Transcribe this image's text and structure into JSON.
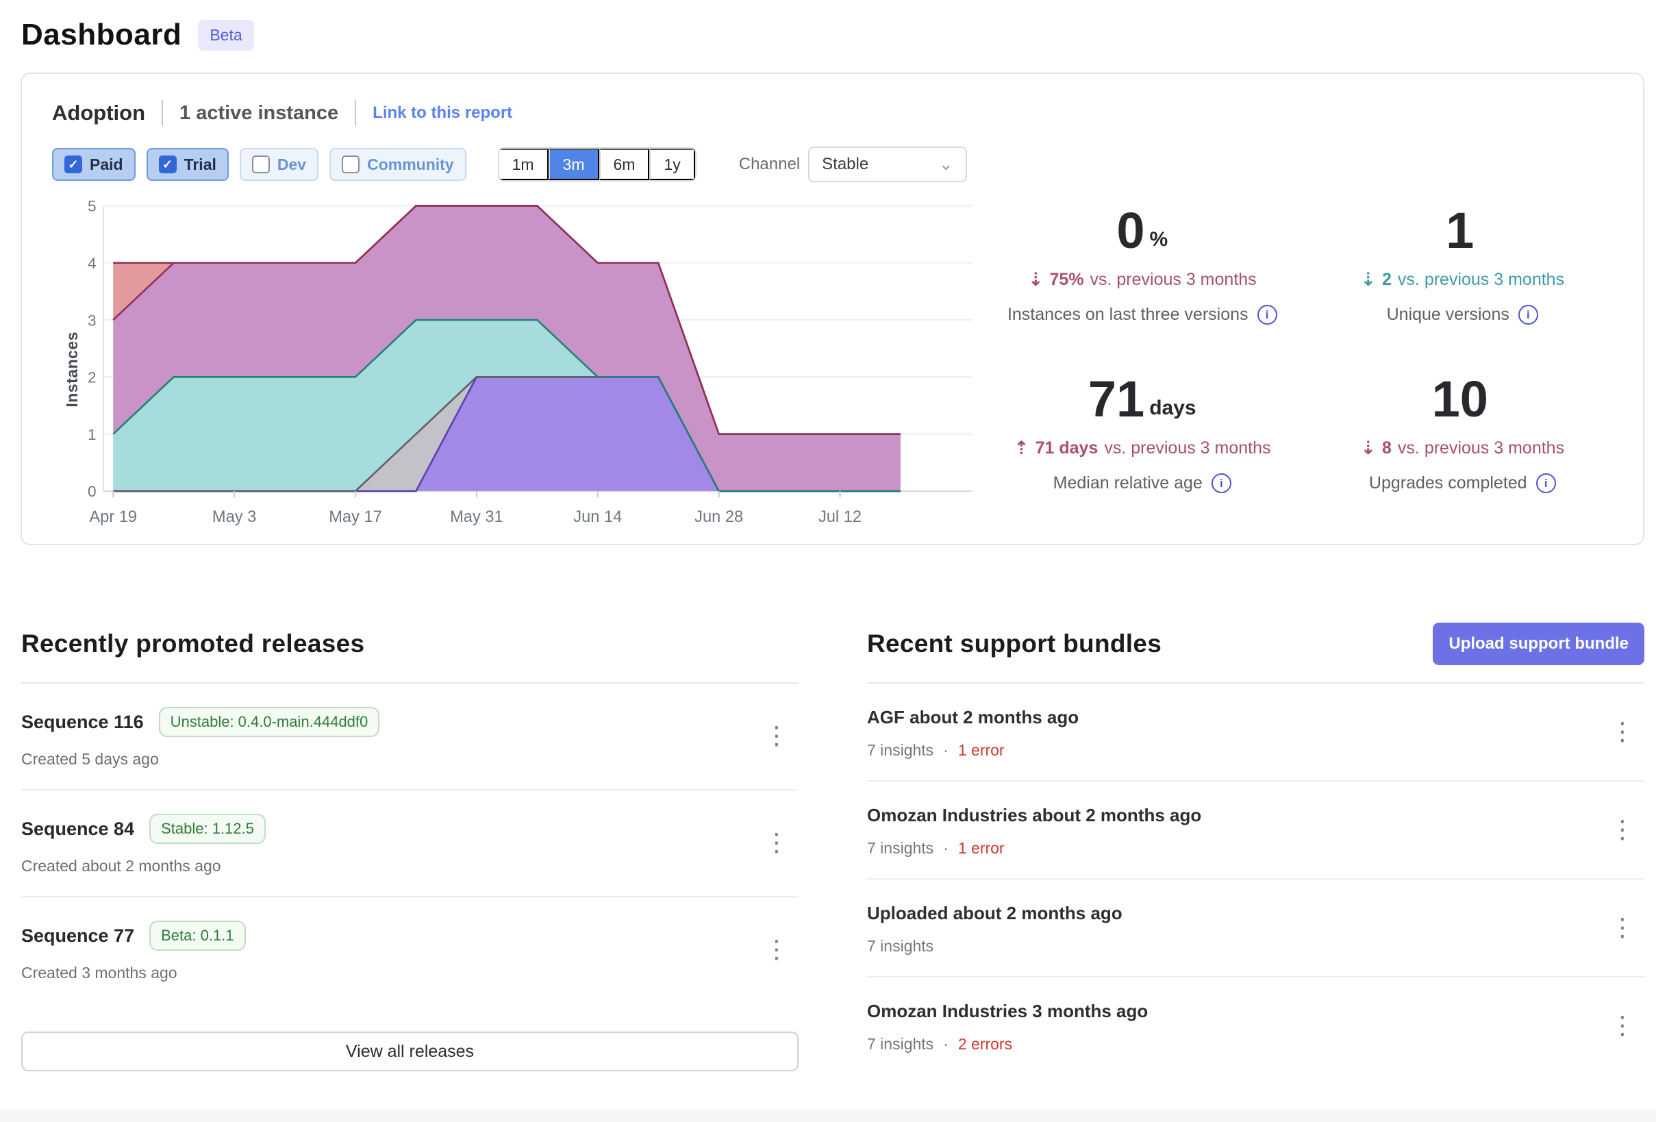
{
  "header": {
    "title": "Dashboard",
    "badge": "Beta"
  },
  "icons": {
    "info": "i",
    "kebab": "⋮",
    "check": "✓",
    "chevron_down": "⌄",
    "dot": "·"
  },
  "colors": {
    "accent_blue": "#5085e8",
    "link_blue": "#5b82ee",
    "indigo_button": "#6c72e6",
    "delta_red": "#a8506b",
    "delta_teal": "#3e9aa7",
    "error_red": "#cf3a2e",
    "badge_green": "#2f7d36",
    "beta_purple": "#5558dd"
  },
  "adoption": {
    "title": "Adoption",
    "active_instances": "1 active instance",
    "link_label": "Link to this report",
    "filters": [
      {
        "label": "Paid",
        "checked": true
      },
      {
        "label": "Trial",
        "checked": true
      },
      {
        "label": "Dev",
        "checked": false
      },
      {
        "label": "Community",
        "checked": false
      }
    ],
    "time_ranges": [
      "1m",
      "3m",
      "6m",
      "1y"
    ],
    "time_range_selected": "3m",
    "channel_label": "Channel",
    "channel_value": "Stable"
  },
  "chart_data": {
    "type": "area",
    "stacked": true,
    "title": "",
    "xlabel": "",
    "ylabel": "Instances",
    "ylim": [
      0,
      5
    ],
    "y_ticks": [
      0,
      1,
      2,
      3,
      4,
      5
    ],
    "grid": "horizontal",
    "legend": "none",
    "x_weeks": [
      "Apr 19",
      "Apr 26",
      "May 3",
      "May 10",
      "May 17",
      "May 24",
      "May 31",
      "Jun 7",
      "Jun 14",
      "Jun 21",
      "Jun 28",
      "Jul 5",
      "Jul 12",
      "Jul 19"
    ],
    "x_tick_labels": [
      "Apr 19",
      "May 3",
      "May 17",
      "May 31",
      "Jun 14",
      "Jun 28",
      "Jul 12"
    ],
    "x_tick_week_indexes": [
      0,
      2,
      4,
      6,
      8,
      10,
      12
    ],
    "series": [
      {
        "name": "version-purple",
        "fill": "#a289e7",
        "stroke": "#5a3fae",
        "values": [
          0,
          0,
          0,
          0,
          0,
          0,
          2,
          2,
          2,
          2,
          0,
          0,
          0,
          0
        ]
      },
      {
        "name": "version-gray",
        "fill": "#c4c2c9",
        "stroke": "#605e69",
        "values": [
          0,
          0,
          0,
          0,
          0,
          1,
          0,
          0,
          0,
          0,
          0,
          0,
          0,
          0
        ]
      },
      {
        "name": "version-teal",
        "fill": "#a6dcdb",
        "stroke": "#20807e",
        "values": [
          1,
          2,
          2,
          2,
          2,
          2,
          1,
          1,
          0,
          0,
          0,
          0,
          0,
          0
        ]
      },
      {
        "name": "version-magenta",
        "fill": "#ca93c8",
        "stroke": "#8e2f55",
        "values": [
          2,
          2,
          2,
          2,
          2,
          2,
          2,
          2,
          2,
          2,
          1,
          1,
          1,
          1
        ]
      },
      {
        "name": "version-salmon",
        "fill": "#e49a9c",
        "stroke": "#8e2f55",
        "values": [
          1,
          0,
          0,
          0,
          0,
          0,
          0,
          0,
          0,
          0,
          0,
          0,
          0,
          0
        ]
      }
    ]
  },
  "stats": {
    "items": [
      {
        "value": "0",
        "value_suffix": "%",
        "trend": "down",
        "arrow": "⇣",
        "delta": "75%",
        "delta_suffix": "vs. previous 3 months",
        "label": "Instances on last three versions"
      },
      {
        "value": "1",
        "value_suffix": "",
        "trend": "down",
        "arrow": "⇣",
        "delta": "2",
        "delta_suffix": "vs. previous 3 months",
        "label": "Unique versions"
      },
      {
        "value": "71",
        "value_suffix": "days",
        "trend": "up",
        "arrow": "⇡",
        "delta": "71 days",
        "delta_suffix": "vs. previous 3 months",
        "label": "Median relative age"
      },
      {
        "value": "10",
        "value_suffix": "",
        "trend": "down",
        "arrow": "⇣",
        "delta": "8",
        "delta_suffix": "vs. previous 3 months",
        "label": "Upgrades completed"
      }
    ]
  },
  "releases": {
    "heading": "Recently promoted releases",
    "view_all_label": "View all releases",
    "items": [
      {
        "title": "Sequence 116",
        "badge": "Unstable: 0.4.0-main.444ddf0",
        "created": "Created 5 days ago"
      },
      {
        "title": "Sequence 84",
        "badge": "Stable: 1.12.5",
        "created": "Created about 2 months ago"
      },
      {
        "title": "Sequence 77",
        "badge": "Beta: 0.1.1",
        "created": "Created 3 months ago"
      }
    ]
  },
  "bundles": {
    "heading": "Recent support bundles",
    "upload_label": "Upload support bundle",
    "items": [
      {
        "title": "AGF about 2 months ago",
        "insights": "7 insights",
        "separator": "·",
        "errors": "1 error"
      },
      {
        "title": "Omozan Industries about 2 months ago",
        "insights": "7 insights",
        "separator": "·",
        "errors": "1 error"
      },
      {
        "title": "Uploaded about 2 months ago",
        "insights": "7 insights",
        "separator": "",
        "errors": ""
      },
      {
        "title": "Omozan Industries 3 months ago",
        "insights": "7 insights",
        "separator": "·",
        "errors": "2 errors"
      }
    ]
  }
}
